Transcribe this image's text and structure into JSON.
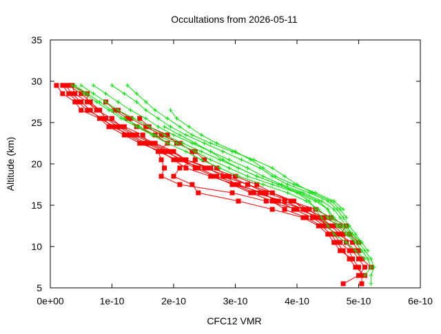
{
  "chart_data": {
    "type": "line",
    "title": "Occultations from 2026-05-11",
    "xlabel": "CFC12 VMR",
    "ylabel": "Altitude (km)",
    "xlim": [
      0,
      6e-10
    ],
    "ylim": [
      5,
      35
    ],
    "x_tick_values": [
      0,
      1e-10,
      2e-10,
      3e-10,
      4e-10,
      5e-10,
      6e-10
    ],
    "x_tick_labels": [
      "0e+00",
      "1e-10",
      "2e-10",
      "3e-10",
      "4e-10",
      "5e-10",
      "6e-10"
    ],
    "y_tick_values": [
      5,
      10,
      15,
      20,
      25,
      30,
      35
    ],
    "y_tick_labels": [
      "5",
      "10",
      "15",
      "20",
      "25",
      "30",
      "35"
    ],
    "grid": false,
    "legend": "none",
    "altitudes": [
      29.5,
      28.5,
      27.5,
      26.5,
      25.5,
      24.5,
      23.5,
      22.5,
      21.5,
      20.5,
      19.5,
      18.5,
      17.5,
      16.5,
      15.5,
      14.5,
      13.5,
      12.5,
      11.5,
      10.5,
      9.5,
      8.5,
      7.5,
      6.5,
      5.5
    ],
    "series": [
      {
        "color": "#ff0000",
        "marker": "square",
        "profiles": [
          [
            1e-11,
            2e-11,
            4e-11,
            5e-11,
            8e-11,
            9.5e-11,
            1.2e-10,
            1.45e-10,
            1.8e-10,
            2e-10,
            2.2e-10,
            2.6e-10,
            3e-10,
            3.3e-10,
            3.8e-10,
            4.1e-10,
            4.3e-10,
            4.5e-10,
            4.6e-10,
            4.7e-10,
            4.85e-10,
            4.9e-10,
            5e-10,
            5.05e-10,
            5.05e-10
          ],
          [
            2.5e-11,
            3.5e-11,
            5e-11,
            6.5e-11,
            8e-11,
            1.05e-10,
            1.25e-10,
            1.5e-10,
            1.75e-10,
            2.05e-10,
            2.5e-10,
            2.9e-10,
            3.2e-10,
            3.5e-10,
            3.9e-10,
            4.2e-10,
            4.35e-10,
            4.5e-10,
            4.6e-10,
            4.8e-10,
            4.9e-10,
            5e-10,
            5.1e-10,
            5e-10,
            4.75e-10
          ],
          [
            3.5e-11,
            4e-11,
            6e-11,
            7.5e-11,
            1e-10,
            1.15e-10,
            1.4e-10,
            1.7e-10,
            2e-10,
            2.2e-10,
            2.55e-10,
            2.8e-10,
            3.2e-10,
            3.6e-10,
            3.95e-10,
            4.1e-10,
            4.3e-10,
            4.6e-10,
            4.75e-10,
            4.8e-10,
            4.95e-10,
            5.05e-10,
            5.2e-10,
            null,
            null
          ],
          [
            3e-11,
            5e-11,
            6.5e-11,
            8e-11,
            9e-11,
            1.2e-10,
            1.5e-10,
            1.6e-10,
            1.9e-10,
            2.1e-10,
            2.35e-10,
            2.65e-10,
            2.95e-10,
            3.25e-10,
            3.6e-10,
            3.8e-10,
            4.15e-10,
            4.4e-10,
            4.55e-10,
            4.65e-10,
            4.75e-10,
            4.85e-10,
            4.95e-10,
            5.1e-10,
            null
          ],
          [
            2e-11,
            3e-11,
            4.5e-11,
            6e-11,
            8.5e-11,
            1e-10,
            1.3e-10,
            1.55e-10,
            1.85e-10,
            2.15e-10,
            2.4e-10,
            2.7e-10,
            3.05e-10,
            3.4e-10,
            3.7e-10,
            3.95e-10,
            4.25e-10,
            4.45e-10,
            4.65e-10,
            4.9e-10,
            5e-10,
            null,
            null,
            null,
            null
          ],
          [
            3.5e-11,
            6e-11,
            6e-11,
            8e-11,
            9e-11,
            1.1e-10,
            1.35e-10,
            1.65e-10,
            1.95e-10,
            2.2e-10,
            2.6e-10,
            3e-10,
            3.35e-10,
            3.6e-10,
            3.9e-10,
            4.3e-10,
            4.55e-10,
            4.8e-10,
            4.7e-10,
            null,
            null,
            null,
            null,
            null,
            null
          ],
          [
            null,
            null,
            9e-11,
            1.05e-10,
            1.25e-10,
            1.4e-10,
            1.7e-10,
            1.9e-10,
            1.75e-10,
            1.8e-10,
            1.85e-10,
            1.8e-10,
            2.1e-10,
            2.95e-10,
            3.5e-10,
            4e-10,
            4.4e-10,
            4.55e-10,
            4.7e-10,
            null,
            null,
            null,
            null,
            null,
            null
          ],
          [
            null,
            null,
            null,
            1.1e-10,
            1.3e-10,
            1.55e-10,
            1.8e-10,
            2.1e-10,
            2.3e-10,
            2.35e-10,
            2.1e-10,
            2e-10,
            2.3e-10,
            2.4e-10,
            3.05e-10,
            3.6e-10,
            4.1e-10,
            4.35e-10,
            4.5e-10,
            4.6e-10,
            4.7e-10,
            4.9e-10,
            null,
            null,
            null
          ],
          [
            null,
            null,
            null,
            null,
            1.45e-10,
            1.6e-10,
            1.9e-10,
            2.05e-10,
            2.35e-10,
            2.5e-10,
            2.7e-10,
            2.85e-10,
            3e-10,
            3.45e-10,
            3.65e-10,
            4.15e-10,
            4.45e-10,
            4.7e-10,
            4.85e-10,
            5e-10,
            null,
            null,
            null,
            null,
            null
          ]
        ]
      },
      {
        "color": "#00e000",
        "marker": "plus",
        "profiles": [
          [
            4e-11,
            6e-11,
            8e-11,
            1e-10,
            1.2e-10,
            1.45e-10,
            1.7e-10,
            2.05e-10,
            2.35e-10,
            2.6e-10,
            2.9e-10,
            3.2e-10,
            3.6e-10,
            4e-10,
            4.3e-10,
            4.5e-10,
            4.6e-10,
            4.75e-10,
            4.9e-10,
            5e-10,
            5.1e-10,
            5.2e-10,
            5.25e-10,
            5.2e-10,
            5.2e-10
          ],
          [
            3.5e-11,
            5.5e-11,
            7.5e-11,
            9.5e-11,
            1.15e-10,
            1.4e-10,
            1.65e-10,
            1.9e-10,
            2.2e-10,
            2.45e-10,
            2.75e-10,
            3.05e-10,
            3.45e-10,
            3.85e-10,
            4.15e-10,
            4.35e-10,
            4.5e-10,
            4.65e-10,
            4.8e-10,
            4.95e-10,
            5.05e-10,
            5.15e-10,
            5.2e-10,
            5.1e-10,
            null
          ],
          [
            5e-11,
            7e-11,
            9e-11,
            1.1e-10,
            1.35e-10,
            1.6e-10,
            1.85e-10,
            2.15e-10,
            2.45e-10,
            2.75e-10,
            3.05e-10,
            3.35e-10,
            3.7e-10,
            4.05e-10,
            4.35e-10,
            4.5e-10,
            4.55e-10,
            4.7e-10,
            4.85e-10,
            4.95e-10,
            5.05e-10,
            5.15e-10,
            null,
            null,
            null
          ],
          [
            7e-11,
            9e-11,
            1.1e-10,
            1.3e-10,
            1.55e-10,
            1.75e-10,
            2e-10,
            2.3e-10,
            2.6e-10,
            2.9e-10,
            3.2e-10,
            3.45e-10,
            3.75e-10,
            4.1e-10,
            4.4e-10,
            4.6e-10,
            4.7e-10,
            4.8e-10,
            4.9e-10,
            5.05e-10,
            5.15e-10,
            null,
            null,
            null,
            null
          ],
          [
            1e-10,
            1.2e-10,
            1.4e-10,
            1.55e-10,
            1.75e-10,
            1.95e-10,
            2.2e-10,
            2.5e-10,
            2.8e-10,
            3.1e-10,
            3.4e-10,
            3.6e-10,
            3.85e-10,
            4.2e-10,
            4.5e-10,
            4.65e-10,
            4.75e-10,
            4.85e-10,
            4.95e-10,
            5.05e-10,
            null,
            null,
            null,
            null,
            null
          ],
          [
            1.25e-10,
            1.4e-10,
            1.55e-10,
            1.7e-10,
            1.9e-10,
            2.1e-10,
            2.3e-10,
            2.6e-10,
            2.95e-10,
            3.3e-10,
            3.6e-10,
            3.8e-10,
            4e-10,
            4.25e-10,
            4.55e-10,
            4.7e-10,
            4.8e-10,
            null,
            null,
            null,
            null,
            null,
            null,
            null,
            null
          ],
          [
            null,
            null,
            null,
            1.95e-10,
            2.05e-10,
            2.25e-10,
            2.45e-10,
            2.7e-10,
            3e-10,
            3.25e-10,
            3.45e-10,
            3.65e-10,
            3.95e-10,
            4.3e-10,
            4.6e-10,
            4.75e-10,
            null,
            null,
            null,
            null,
            null,
            null,
            null,
            null,
            null
          ],
          [
            null,
            null,
            null,
            null,
            null,
            1.85e-10,
            2.1e-10,
            2.35e-10,
            2.6e-10,
            2.8e-10,
            3.05e-10,
            3.35e-10,
            3.7e-10,
            4e-10,
            4.2e-10,
            4.3e-10,
            4.4e-10,
            4.5e-10,
            4.6e-10,
            4.8e-10,
            4.95e-10,
            5.1e-10,
            null,
            null,
            null
          ]
        ]
      }
    ]
  }
}
